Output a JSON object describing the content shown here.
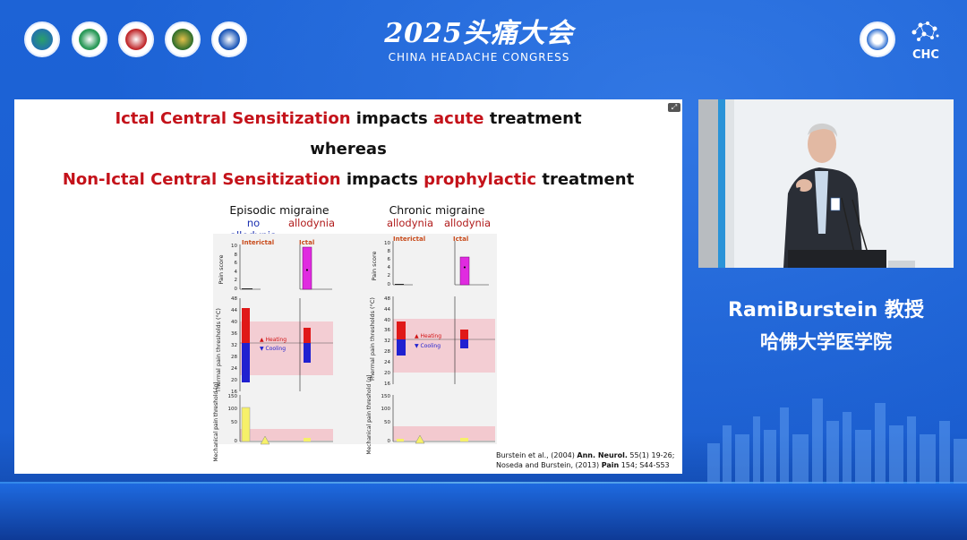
{
  "header": {
    "title": "2025头痛大会",
    "subtitle": "CHINA HEADACHE CONGRESS",
    "right_logo_text": "CHC"
  },
  "slide": {
    "line1": {
      "a": "Ictal Central Sensitization",
      "b": " impacts ",
      "c": "acute",
      "d": " treatment"
    },
    "line2": "whereas",
    "line3": {
      "a": "Non-Ictal Central Sensitization",
      "b": " impacts ",
      "c": "prophylactic",
      "d": " treatment"
    },
    "left_panel": {
      "title": "Episodic migraine",
      "label_left": "no allodynia",
      "label_right": "allodynia"
    },
    "right_panel": {
      "title": "Chronic migraine",
      "label_left": "allodynia",
      "label_right": "allodynia"
    },
    "citation_line1": {
      "a": "Burstein et al., (2004) ",
      "b": "Ann. Neurol.",
      "c": " 55(1) 19-26;"
    },
    "citation_line2": {
      "a": "Noseda and Burstein, (2013) ",
      "b": "Pain",
      "c": " 154; S44-S53"
    }
  },
  "figure": {
    "interictal": "Interictal",
    "ictal": "Ictal",
    "pain_axis": "Pain score",
    "thermal_axis": "Thermal pain thresholds (°C)",
    "mech_axis": "Mechanical pain threshold (g)",
    "heating": "Heating",
    "cooling": "Cooling",
    "pain_ticks": [
      "10",
      "8",
      "6",
      "4",
      "2",
      "0"
    ],
    "thermal_ticks": [
      "48",
      "44",
      "40",
      "36",
      "32",
      "28",
      "24",
      "20",
      "16"
    ],
    "mech_ticks": [
      "150",
      "100",
      "50",
      "0"
    ]
  },
  "speaker": {
    "name": "RamiBurstein  教授",
    "affiliation": "哈佛大学医学院"
  },
  "colors": {
    "accent_red": "#c4121a",
    "bg_blue": "#1d63d6"
  }
}
